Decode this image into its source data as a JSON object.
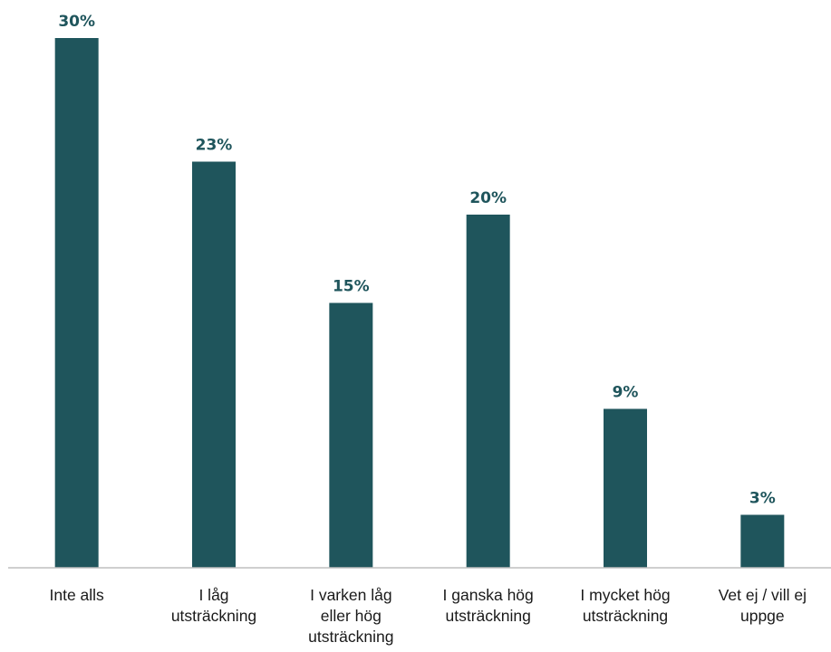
{
  "chart_data": {
    "type": "bar",
    "categories": [
      [
        "Inte alls"
      ],
      [
        "I låg",
        "utsträckning"
      ],
      [
        "I varken låg",
        "eller hög",
        "utsträckning"
      ],
      [
        "I ganska hög",
        "utsträckning"
      ],
      [
        "I mycket hög",
        "utsträckning"
      ],
      [
        "Vet ej / vill ej",
        "uppge"
      ]
    ],
    "values": [
      30,
      23,
      15,
      20,
      9,
      3
    ],
    "data_labels": [
      "30%",
      "23%",
      "15%",
      "20%",
      "9%",
      "3%"
    ],
    "value_unit": "%",
    "title": "",
    "xlabel": "",
    "ylabel": "",
    "ylim": [
      0,
      30
    ],
    "grid": false,
    "legend": "none",
    "colors": {
      "bar": "#1F555C",
      "label": "#1F555C",
      "category_text": "#1a1a1a",
      "baseline": "#bfbfbf"
    }
  }
}
